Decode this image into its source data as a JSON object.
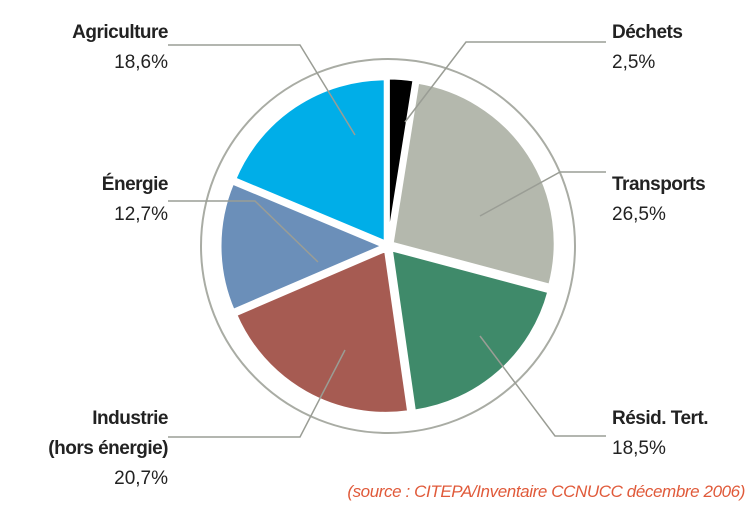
{
  "chart_data": {
    "type": "pie",
    "categories": [
      "Déchets",
      "Transports",
      "Résid. Tert.",
      "Industrie\n(hors énergie)",
      "Énergie",
      "Agriculture"
    ],
    "values": [
      2.5,
      26.5,
      18.5,
      20.7,
      12.7,
      18.6
    ],
    "value_labels": [
      "2,5%",
      "26,5%",
      "18,5%",
      "20,7%",
      "12,7%",
      "18,6%"
    ],
    "colors": [
      "#000000",
      "#b4b8ad",
      "#3f8a6a",
      "#a65b52",
      "#6b8fb9",
      "#00aee8"
    ],
    "source": "(source : CITEPA/Inventaire CCNUCC décembre 2006)"
  }
}
